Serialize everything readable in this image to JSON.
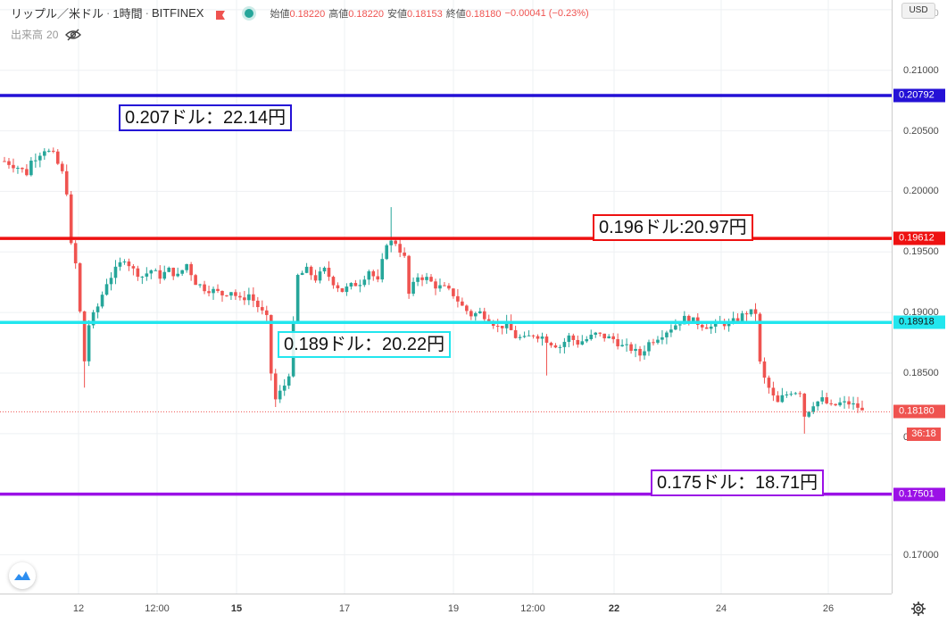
{
  "header": {
    "symbol": "リップル／米ドル",
    "interval": "1時間",
    "exchange": "BITFINEX",
    "open_label": "始値",
    "open_value": "0.18220",
    "high_label": "高値",
    "high_value": "0.18220",
    "low_label": "安値",
    "low_value": "0.18153",
    "close_label": "終値",
    "close_value": "0.18180",
    "change": "−0.00041 (−0.23%)",
    "volume_label": "出来高",
    "volume_value": "20"
  },
  "price_axis": {
    "currency": "USD",
    "ticks": [
      "0.21000",
      "0.20500",
      "0.20000",
      "0.19500",
      "0.19000",
      "0.18500",
      "0.17000"
    ],
    "ticks_partial": [
      "0.21500",
      "0."
    ]
  },
  "time_axis": {
    "labels": [
      {
        "text": "12",
        "bold": false
      },
      {
        "text": "12:00",
        "bold": false
      },
      {
        "text": "15",
        "bold": true
      },
      {
        "text": "17",
        "bold": false
      },
      {
        "text": "19",
        "bold": false
      },
      {
        "text": "12:00",
        "bold": false
      },
      {
        "text": "22",
        "bold": true
      },
      {
        "text": "24",
        "bold": false
      },
      {
        "text": "26",
        "bold": false
      }
    ]
  },
  "horizontal_lines": [
    {
      "name": "blue",
      "price": 0.20792,
      "badge": "0.20792",
      "color": "#2411d6",
      "label": "0.207ドル：22.14円"
    },
    {
      "name": "red",
      "price": 0.19612,
      "badge": "0.19612",
      "color": "#ee1111",
      "label": "0.196ドル:20.97円"
    },
    {
      "name": "cyan",
      "price": 0.18918,
      "badge": "0.18918",
      "color": "#22e6ee",
      "label": "0.189ドル：20.22円"
    },
    {
      "name": "purple",
      "price": 0.17501,
      "badge": "0.17501",
      "color": "#9b11e6",
      "label": "0.175ドル：18.71円"
    }
  ],
  "last_price": {
    "value": 0.1818,
    "badge": "0.18180",
    "countdown": "36:18",
    "color": "#ef5350"
  },
  "colors": {
    "up": "#26a69a",
    "down": "#ef5350",
    "grid": "#eef0f3"
  },
  "chart_data": {
    "type": "candlestick",
    "title": "リップル／米ドル · 1時間 · BITFINEX",
    "ylabel": "USD",
    "ylim": [
      0.1668,
      0.2158
    ],
    "anchors": [
      [
        0,
        0.2025
      ],
      [
        3,
        0.202
      ],
      [
        5,
        0.2015
      ],
      [
        6,
        0.2025
      ],
      [
        9,
        0.2035
      ],
      [
        11,
        0.203
      ],
      [
        13,
        0.2015
      ],
      [
        14,
        0.2
      ],
      [
        15,
        0.1955
      ],
      [
        16,
        0.194
      ],
      [
        18,
        0.186
      ],
      [
        19,
        0.189
      ],
      [
        21,
        0.1905
      ],
      [
        23,
        0.1925
      ],
      [
        25,
        0.1935
      ],
      [
        27,
        0.1945
      ],
      [
        29,
        0.1935
      ],
      [
        31,
        0.193
      ],
      [
        33,
        0.1935
      ],
      [
        35,
        0.193
      ],
      [
        37,
        0.1935
      ],
      [
        39,
        0.193
      ],
      [
        41,
        0.194
      ],
      [
        43,
        0.1925
      ],
      [
        45,
        0.192
      ],
      [
        47,
        0.1918
      ],
      [
        49,
        0.1915
      ],
      [
        51,
        0.1918
      ],
      [
        53,
        0.191
      ],
      [
        55,
        0.1915
      ],
      [
        57,
        0.1905
      ],
      [
        59,
        0.1895
      ],
      [
        60,
        0.185
      ],
      [
        61,
        0.1828
      ],
      [
        63,
        0.184
      ],
      [
        64,
        0.185
      ],
      [
        66,
        0.193
      ],
      [
        68,
        0.1935
      ],
      [
        70,
        0.1928
      ],
      [
        72,
        0.1935
      ],
      [
        74,
        0.1925
      ],
      [
        76,
        0.1918
      ],
      [
        78,
        0.1922
      ],
      [
        80,
        0.1925
      ],
      [
        82,
        0.1935
      ],
      [
        84,
        0.1925
      ],
      [
        86,
        0.1958
      ],
      [
        88,
        0.1958
      ],
      [
        90,
        0.1945
      ],
      [
        91,
        0.1915
      ],
      [
        93,
        0.193
      ],
      [
        95,
        0.1928
      ],
      [
        97,
        0.1922
      ],
      [
        99,
        0.192
      ],
      [
        101,
        0.1915
      ],
      [
        103,
        0.1905
      ],
      [
        105,
        0.1898
      ],
      [
        107,
        0.19
      ],
      [
        109,
        0.1895
      ],
      [
        111,
        0.1888
      ],
      [
        113,
        0.189
      ],
      [
        115,
        0.188
      ],
      [
        117,
        0.1878
      ],
      [
        119,
        0.1882
      ],
      [
        121,
        0.188
      ],
      [
        123,
        0.1875
      ],
      [
        125,
        0.1872
      ],
      [
        127,
        0.188
      ],
      [
        129,
        0.1875
      ],
      [
        131,
        0.1878
      ],
      [
        133,
        0.1882
      ],
      [
        135,
        0.188
      ],
      [
        137,
        0.1878
      ],
      [
        139,
        0.1872
      ],
      [
        141,
        0.187
      ],
      [
        143,
        0.1865
      ],
      [
        145,
        0.1875
      ],
      [
        147,
        0.188
      ],
      [
        149,
        0.1885
      ],
      [
        151,
        0.189
      ],
      [
        153,
        0.1895
      ],
      [
        155,
        0.1893
      ],
      [
        157,
        0.189
      ],
      [
        159,
        0.1888
      ],
      [
        161,
        0.1892
      ],
      [
        163,
        0.189
      ],
      [
        165,
        0.1895
      ],
      [
        167,
        0.19
      ],
      [
        169,
        0.19
      ],
      [
        170,
        0.1858
      ],
      [
        171,
        0.1845
      ],
      [
        173,
        0.183
      ],
      [
        174,
        0.1825
      ],
      [
        175,
        0.183
      ],
      [
        177,
        0.1835
      ],
      [
        179,
        0.1835
      ],
      [
        180,
        0.1815
      ],
      [
        182,
        0.1825
      ],
      [
        184,
        0.1828
      ],
      [
        186,
        0.1822
      ],
      [
        188,
        0.1825
      ],
      [
        190,
        0.1825
      ],
      [
        192,
        0.1822
      ],
      [
        193,
        0.1818
      ]
    ]
  }
}
